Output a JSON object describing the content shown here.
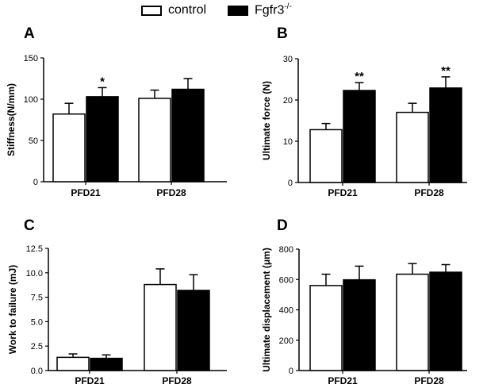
{
  "legend": {
    "items": [
      {
        "name": "control",
        "fill": "#ffffff"
      },
      {
        "name": "Fgfr3-/-",
        "fill": "#000000"
      }
    ]
  },
  "chart_data": [
    {
      "type": "bar",
      "panel": "A",
      "ylabel": "Stiffness(N/mm)",
      "ylim": [
        0,
        150
      ],
      "yticks": [
        0,
        50,
        100,
        150
      ],
      "ytick_labels": [
        "0",
        "50",
        "100",
        "150"
      ],
      "categories": [
        "PFD21",
        "PFD28"
      ],
      "series": [
        {
          "name": "control",
          "values": [
            82,
            101
          ],
          "errors": [
            13,
            10
          ]
        },
        {
          "name": "Fgfr3-/-",
          "values": [
            103,
            112
          ],
          "errors": [
            11,
            13
          ]
        }
      ],
      "annotations": [
        {
          "series": "Fgfr3-/-",
          "category": "PFD21",
          "text": "*"
        }
      ]
    },
    {
      "type": "bar",
      "panel": "B",
      "ylabel": "Ultimate force (N)",
      "ylim": [
        0,
        30
      ],
      "yticks": [
        0,
        10,
        20,
        30
      ],
      "ytick_labels": [
        "0",
        "10",
        "20",
        "30"
      ],
      "categories": [
        "PFD21",
        "PFD28"
      ],
      "series": [
        {
          "name": "control",
          "values": [
            12.8,
            17
          ],
          "errors": [
            1.5,
            2.2
          ]
        },
        {
          "name": "Fgfr3-/-",
          "values": [
            22.3,
            22.9
          ],
          "errors": [
            1.9,
            2.7
          ]
        }
      ],
      "annotations": [
        {
          "series": "Fgfr3-/-",
          "category": "PFD21",
          "text": "**"
        },
        {
          "series": "Fgfr3-/-",
          "category": "PFD28",
          "text": "**"
        }
      ]
    },
    {
      "type": "bar",
      "panel": "C",
      "ylabel": "Work to failure (mJ)",
      "ylim": [
        0,
        12.5
      ],
      "yticks": [
        0,
        2.5,
        5,
        7.5,
        10,
        12.5
      ],
      "ytick_labels": [
        "0.0",
        "2.5",
        "5.0",
        "7.5",
        "10.0",
        "12.5"
      ],
      "categories": [
        "PFD21",
        "PFD28"
      ],
      "series": [
        {
          "name": "control",
          "values": [
            1.35,
            8.8
          ],
          "errors": [
            0.35,
            1.6
          ]
        },
        {
          "name": "Fgfr3-/-",
          "values": [
            1.25,
            8.2
          ],
          "errors": [
            0.35,
            1.6
          ]
        }
      ],
      "annotations": []
    },
    {
      "type": "bar",
      "panel": "D",
      "ylabel": "Ultimate displacement (μm)",
      "ylim": [
        0,
        800
      ],
      "yticks": [
        0,
        200,
        400,
        600,
        800
      ],
      "ytick_labels": [
        "0",
        "200",
        "400",
        "600",
        "800"
      ],
      "categories": [
        "PFD21",
        "PFD28"
      ],
      "series": [
        {
          "name": "control",
          "values": [
            560,
            635
          ],
          "errors": [
            75,
            70
          ]
        },
        {
          "name": "Fgfr3-/-",
          "values": [
            598,
            648
          ],
          "errors": [
            90,
            50
          ]
        }
      ],
      "annotations": []
    }
  ]
}
